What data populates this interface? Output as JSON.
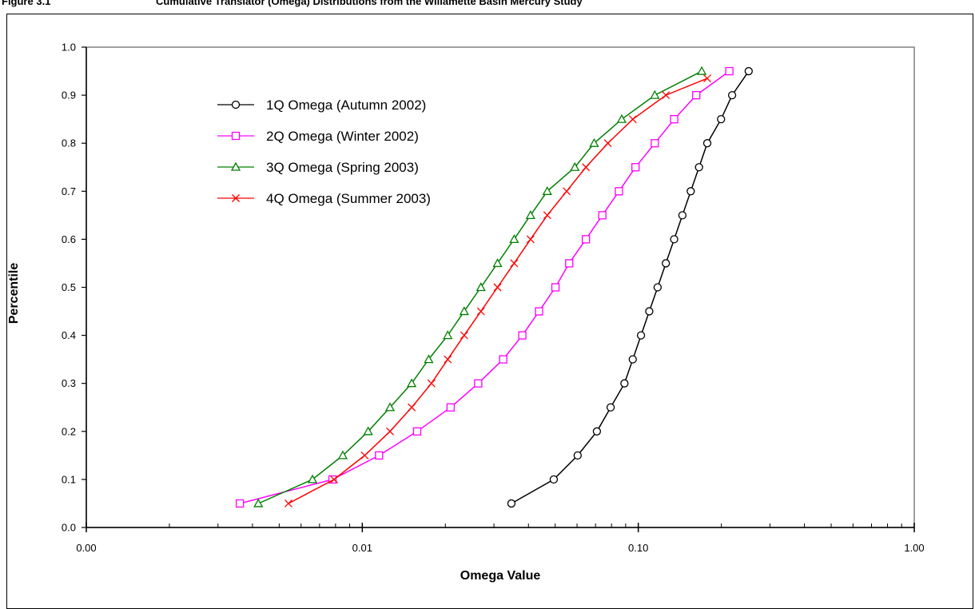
{
  "figure": {
    "label": "Figure 3.1",
    "title": "Cumulative Translator (Omega) Distributions from the Willamette Basin Mercury Study"
  },
  "chart_data": {
    "type": "line",
    "xlabel": "Omega Value",
    "ylabel": "Percentile",
    "xscale": "log",
    "xlim": [
      0.001,
      1.0
    ],
    "ylim": [
      0.0,
      1.0
    ],
    "xticks": [
      {
        "v": 0.001,
        "label": "0.00"
      },
      {
        "v": 0.01,
        "label": "0.01"
      },
      {
        "v": 0.1,
        "label": "0.10"
      },
      {
        "v": 1.0,
        "label": "1.00"
      }
    ],
    "yticks": [
      {
        "v": 0.0,
        "label": "0.0"
      },
      {
        "v": 0.1,
        "label": "0.1"
      },
      {
        "v": 0.2,
        "label": "0.2"
      },
      {
        "v": 0.3,
        "label": "0.3"
      },
      {
        "v": 0.4,
        "label": "0.4"
      },
      {
        "v": 0.5,
        "label": "0.5"
      },
      {
        "v": 0.6,
        "label": "0.6"
      },
      {
        "v": 0.7,
        "label": "0.7"
      },
      {
        "v": 0.8,
        "label": "0.8"
      },
      {
        "v": 0.9,
        "label": "0.9"
      },
      {
        "v": 1.0,
        "label": "1.0"
      }
    ],
    "grid": false,
    "legend_position": "top-left",
    "series": [
      {
        "name": "1Q Omega (Autumn 2002)",
        "color": "#000000",
        "marker": "circle",
        "x": [
          0.0347,
          0.0494,
          0.0603,
          0.0708,
          0.0794,
          0.0891,
          0.0955,
          0.1023,
          0.1096,
          0.1175,
          0.1259,
          0.1349,
          0.1445,
          0.1549,
          0.166,
          0.1778,
          0.1995,
          0.2188,
          0.2512
        ],
        "y": [
          0.05,
          0.1,
          0.15,
          0.2,
          0.25,
          0.3,
          0.35,
          0.4,
          0.45,
          0.5,
          0.55,
          0.6,
          0.65,
          0.7,
          0.75,
          0.8,
          0.85,
          0.9,
          0.95
        ]
      },
      {
        "name": "2Q Omega (Winter 2002)",
        "color": "#ff00ff",
        "marker": "square",
        "x": [
          0.0036,
          0.0078,
          0.0115,
          0.0158,
          0.0209,
          0.0263,
          0.0324,
          0.038,
          0.0437,
          0.0501,
          0.0562,
          0.0646,
          0.0741,
          0.0851,
          0.0977,
          0.1148,
          0.1349,
          0.1622,
          0.2138
        ],
        "y": [
          0.05,
          0.1,
          0.15,
          0.2,
          0.25,
          0.3,
          0.35,
          0.4,
          0.45,
          0.5,
          0.55,
          0.6,
          0.65,
          0.7,
          0.75,
          0.8,
          0.85,
          0.9,
          0.95
        ]
      },
      {
        "name": "3Q Omega (Spring 2003)",
        "color": "#008000",
        "marker": "triangle",
        "x": [
          0.0042,
          0.0066,
          0.0085,
          0.0105,
          0.0126,
          0.0151,
          0.0174,
          0.0204,
          0.0234,
          0.0269,
          0.0309,
          0.0355,
          0.0407,
          0.0468,
          0.0589,
          0.0692,
          0.0871,
          0.1148,
          0.1698
        ],
        "y": [
          0.05,
          0.1,
          0.15,
          0.2,
          0.25,
          0.3,
          0.35,
          0.4,
          0.45,
          0.5,
          0.55,
          0.6,
          0.65,
          0.7,
          0.75,
          0.8,
          0.85,
          0.9,
          0.95
        ]
      },
      {
        "name": "4Q Omega (Summer 2003)",
        "color": "#ff0000",
        "marker": "x",
        "x": [
          0.0054,
          0.0079,
          0.0102,
          0.0126,
          0.0151,
          0.0178,
          0.0204,
          0.0234,
          0.0269,
          0.0309,
          0.0355,
          0.0407,
          0.0468,
          0.055,
          0.0646,
          0.0776,
          0.0955,
          0.1259,
          0.1778
        ],
        "y": [
          0.05,
          0.1,
          0.15,
          0.2,
          0.25,
          0.3,
          0.35,
          0.4,
          0.45,
          0.5,
          0.55,
          0.6,
          0.65,
          0.7,
          0.75,
          0.8,
          0.85,
          0.9,
          0.935
        ]
      }
    ]
  }
}
